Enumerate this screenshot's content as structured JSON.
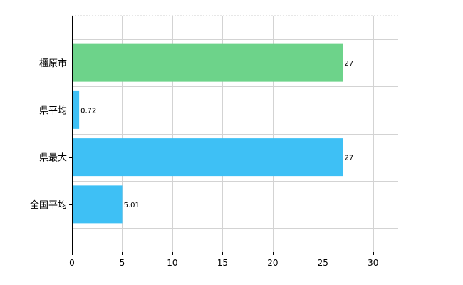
{
  "chart_data": {
    "type": "bar",
    "orientation": "horizontal",
    "categories": [
      "橿原市",
      "県平均",
      "県最大",
      "全国平均"
    ],
    "values": [
      27,
      0.72,
      27,
      5.01
    ],
    "value_labels": [
      "27",
      "0.72",
      "27",
      "5.01"
    ],
    "bar_colors": [
      "#6dd38a",
      "#3ec0f5",
      "#3ec0f5",
      "#3ec0f5"
    ],
    "xlim": [
      0,
      32.5
    ],
    "xticks": [
      0,
      5,
      10,
      15,
      20,
      25,
      30
    ],
    "xtick_labels": [
      "0",
      "5",
      "10",
      "15",
      "20",
      "25",
      "30"
    ],
    "grid": true
  }
}
